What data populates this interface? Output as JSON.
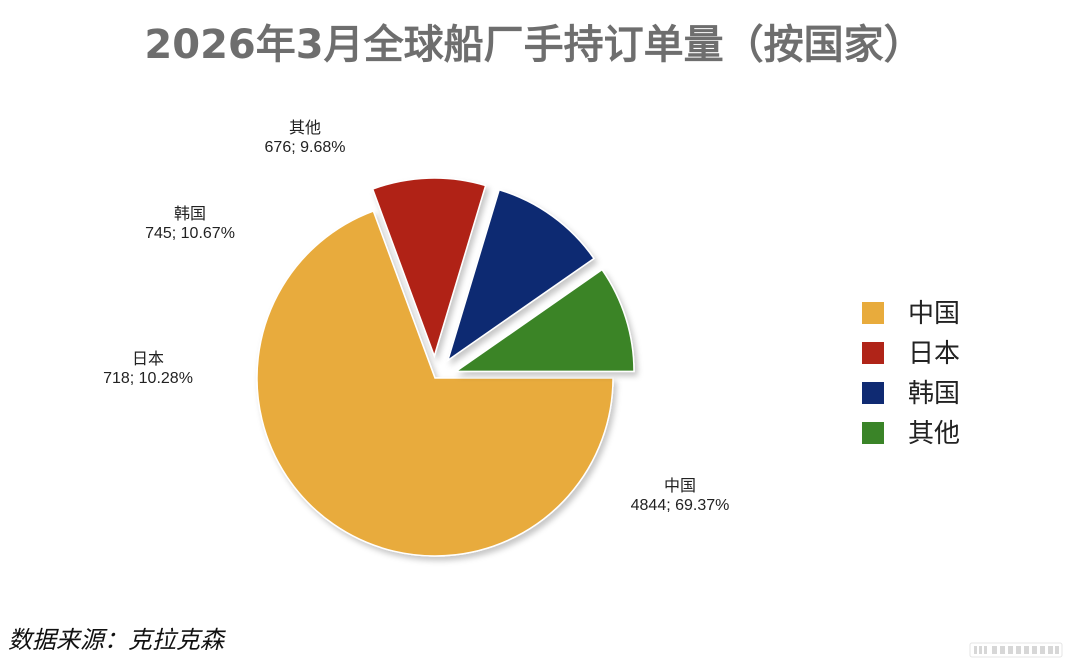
{
  "chart_data": {
    "type": "pie",
    "title": "2026年3月全球船厂手持订单量（按国家）",
    "slices": [
      {
        "name": "中国",
        "value": 4844,
        "percent": "69.37%",
        "label": "4844; 69.37%",
        "color": "#e8ab3c",
        "exploded": false
      },
      {
        "name": "日本",
        "value": 718,
        "percent": "10.28%",
        "label": "718; 10.28%",
        "color": "#b02418",
        "exploded": true
      },
      {
        "name": "韩国",
        "value": 745,
        "percent": "10.67%",
        "label": "745; 10.67%",
        "color": "#0f2a72",
        "exploded": true
      },
      {
        "name": "其他",
        "value": 676,
        "percent": "9.68%",
        "label": "676; 9.68%",
        "color": "#3a8428",
        "exploded": true
      }
    ],
    "legend": [
      "中国",
      "日本",
      "韩国",
      "其他"
    ],
    "legend_position": "right"
  },
  "source_note": "数据来源：克拉克森",
  "watermark": "www.douying.com"
}
